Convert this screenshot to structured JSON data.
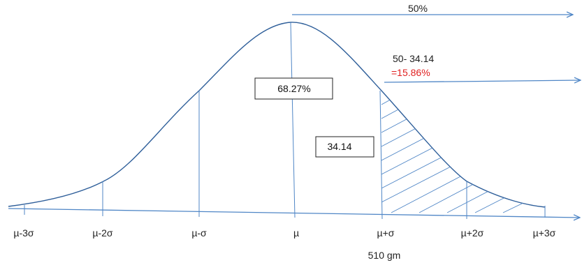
{
  "top_arrow_label": "50%",
  "right_arrow_label_line1": "50- 34.14",
  "right_arrow_label_line2": "=15.86%",
  "center_box_label": "68.27%",
  "tail_box_label": "34.14",
  "axis_ticks": [
    "µ-3σ",
    "µ-2σ",
    "µ-σ",
    "µ",
    "µ+σ",
    "µ+2σ",
    "µ+3σ"
  ],
  "below_axis_label": "510 gm",
  "colors": {
    "curve": "#2f5f9a",
    "arrow": "#4f86c6",
    "highlight_text": "#e02020",
    "text": "#222222"
  }
}
